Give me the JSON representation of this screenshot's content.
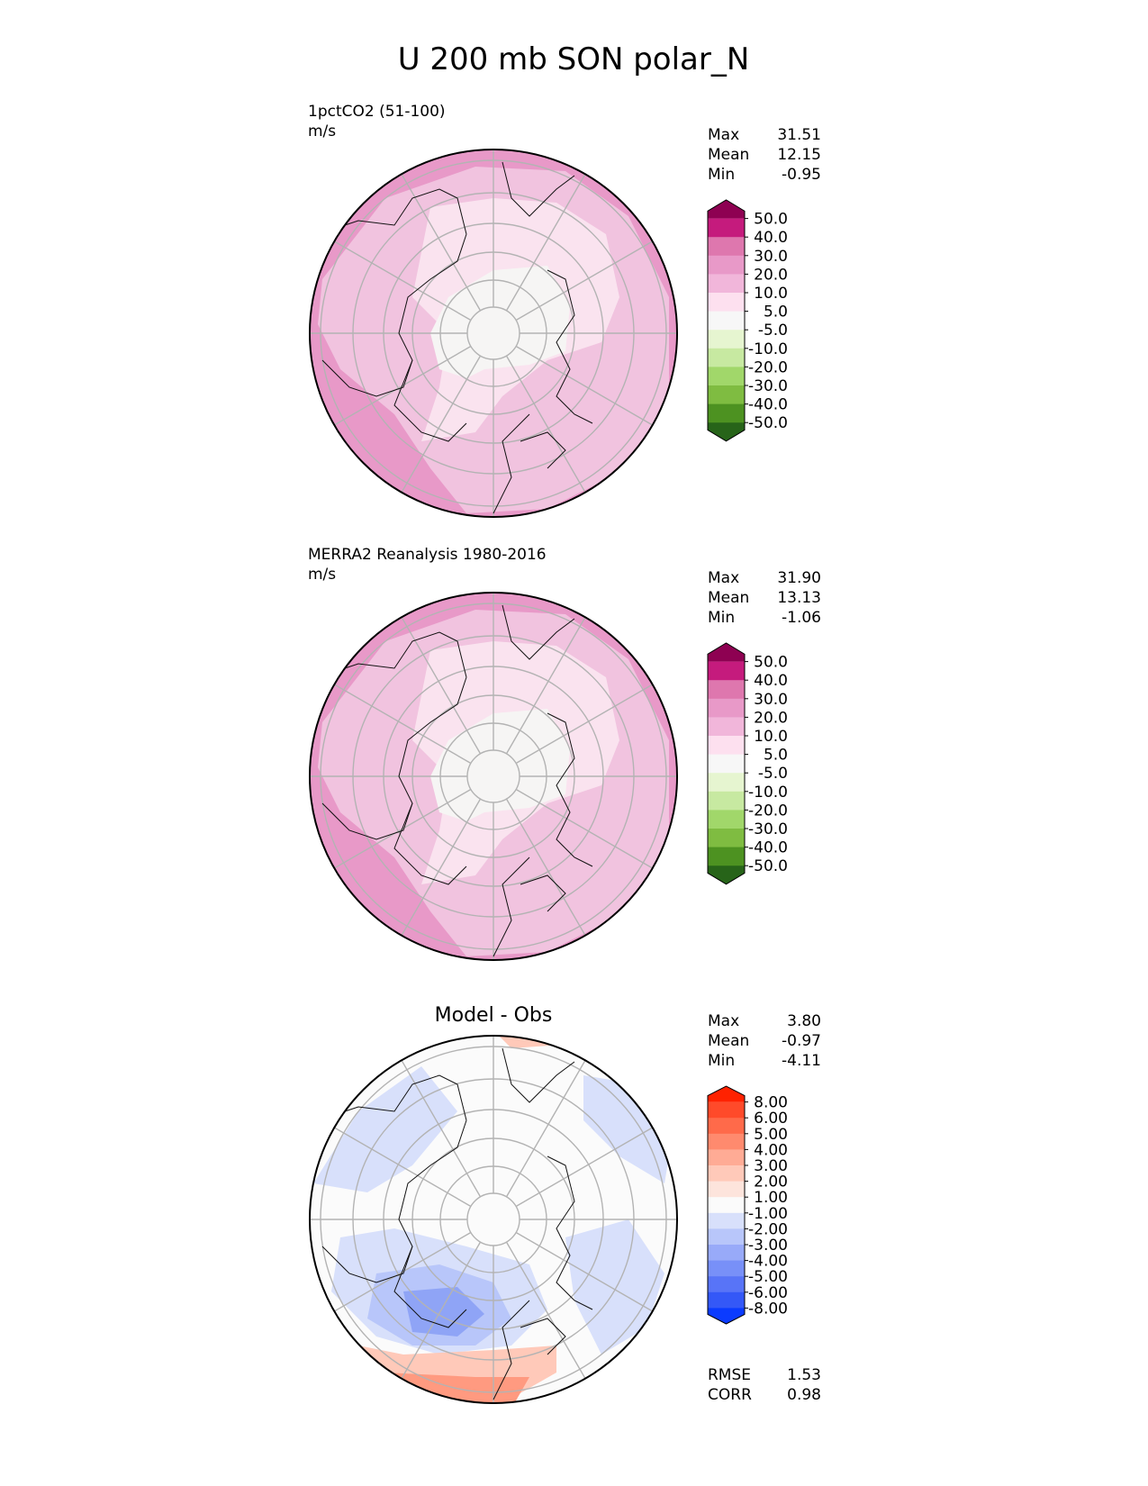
{
  "figure_title": "U 200 mb SON polar_N",
  "chart_data": [
    {
      "type": "heatmap",
      "projection": "north-polar-stereographic",
      "title": "1pctCO2 (51-100)",
      "units": "m/s",
      "stats": [
        {
          "label": "Max",
          "value": "31.51"
        },
        {
          "label": "Mean",
          "value": "12.15"
        },
        {
          "label": "Min",
          "value": "-0.95"
        }
      ],
      "colorbar": {
        "levels": [
          "50.0",
          "40.0",
          "30.0",
          "20.0",
          "10.0",
          "5.0",
          "-5.0",
          "-10.0",
          "-20.0",
          "-30.0",
          "-40.0",
          "-50.0"
        ],
        "colors": [
          "#8e0152",
          "#c51b7d",
          "#de77ae",
          "#e899c8",
          "#f1b6da",
          "#fde0ef",
          "#f7f7f7",
          "#e6f5d0",
          "#c7e9a1",
          "#a1d76a",
          "#7fbc41",
          "#4d9221",
          "#276419"
        ],
        "extend": "both"
      },
      "field_zones": [
        "#e899c8",
        "#f1c3df",
        "#fae3ef",
        "#f6f5f4"
      ]
    },
    {
      "type": "heatmap",
      "projection": "north-polar-stereographic",
      "title": "MERRA2 Reanalysis 1980-2016",
      "units": "m/s",
      "stats": [
        {
          "label": "Max",
          "value": "31.90"
        },
        {
          "label": "Mean",
          "value": "13.13"
        },
        {
          "label": "Min",
          "value": "-1.06"
        }
      ],
      "colorbar": {
        "levels": [
          "50.0",
          "40.0",
          "30.0",
          "20.0",
          "10.0",
          "5.0",
          "-5.0",
          "-10.0",
          "-20.0",
          "-30.0",
          "-40.0",
          "-50.0"
        ],
        "colors": [
          "#8e0152",
          "#c51b7d",
          "#de77ae",
          "#e899c8",
          "#f1b6da",
          "#fde0ef",
          "#f7f7f7",
          "#e6f5d0",
          "#c7e9a1",
          "#a1d76a",
          "#7fbc41",
          "#4d9221",
          "#276419"
        ],
        "extend": "both"
      },
      "field_zones": [
        "#e899c8",
        "#f1c3df",
        "#fae3ef",
        "#f6f5f4"
      ]
    },
    {
      "type": "heatmap",
      "projection": "north-polar-stereographic",
      "title": "Model - Obs",
      "units": "",
      "stats": [
        {
          "label": "Max",
          "value": "3.80"
        },
        {
          "label": "Mean",
          "value": "-0.97"
        },
        {
          "label": "Min",
          "value": "-4.11"
        }
      ],
      "extra_stats": [
        {
          "label": "RMSE",
          "value": "1.53"
        },
        {
          "label": "CORR",
          "value": "0.98"
        }
      ],
      "colorbar": {
        "levels": [
          "8.00",
          "6.00",
          "5.00",
          "4.00",
          "3.00",
          "2.00",
          "1.00",
          "-1.00",
          "-2.00",
          "-3.00",
          "-4.00",
          "-5.00",
          "-6.00",
          "-8.00"
        ],
        "colors": [
          "#ff2200",
          "#ff4a2a",
          "#ff6a4a",
          "#ff8a6e",
          "#ffab95",
          "#ffc9b9",
          "#fde4dc",
          "#fbfbfb",
          "#d8e0fb",
          "#b8c6fa",
          "#98aaf9",
          "#7890f8",
          "#5874f7",
          "#3458f7",
          "#0b3bff"
        ],
        "extend": "both"
      },
      "field_zones": [
        "#fbfbfb",
        "#d8e0fb",
        "#b8c6fa",
        "#8fa4f6",
        "#ffc9b9",
        "#ff9a80"
      ]
    }
  ]
}
